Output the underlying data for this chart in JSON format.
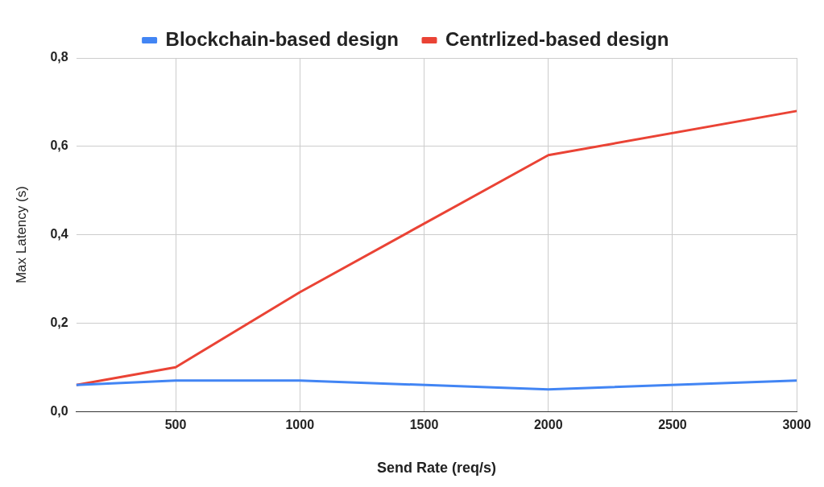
{
  "chart_data": {
    "type": "line",
    "xlabel": "Send Rate (req/s)",
    "ylabel": "Max Latency (s)",
    "x": [
      100,
      500,
      1000,
      2000,
      3000
    ],
    "series": [
      {
        "name": "Blockchain-based design",
        "color": "#4285f4",
        "values": [
          0.06,
          0.07,
          0.07,
          0.05,
          0.07
        ]
      },
      {
        "name": "Centrlized-based design",
        "color": "#ea4335",
        "values": [
          0.06,
          0.1,
          0.27,
          0.58,
          0.68
        ]
      }
    ],
    "xlim": [
      100,
      3000
    ],
    "xticks": [
      500,
      1000,
      1500,
      2000,
      2500,
      3000
    ],
    "ylim": [
      0,
      0.8
    ],
    "yticks": [
      {
        "value": 0,
        "label": "0,0"
      },
      {
        "value": 0.2,
        "label": "0,2"
      },
      {
        "value": 0.4,
        "label": "0,4"
      },
      {
        "value": 0.6,
        "label": "0,6"
      },
      {
        "value": 0.8,
        "label": "0,8"
      }
    ],
    "grid": true,
    "legend": "top",
    "marker": "none",
    "line_style": "solid"
  }
}
